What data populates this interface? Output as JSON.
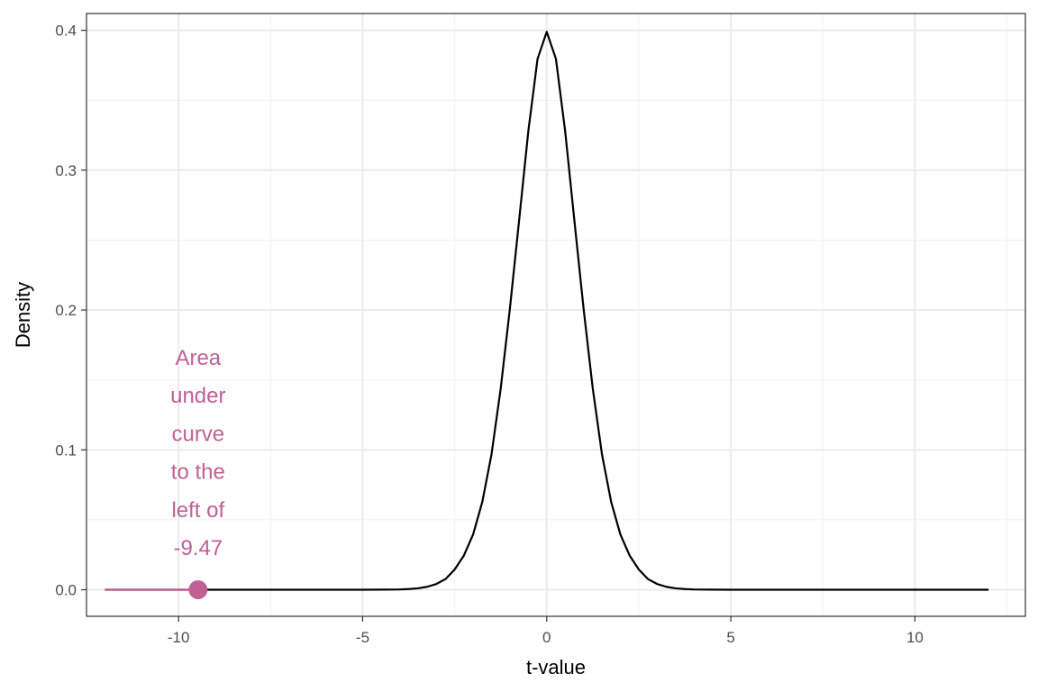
{
  "chart_data": {
    "type": "line",
    "title": "",
    "xlabel": "t-value",
    "ylabel": "Density",
    "xlim": [
      -12.5,
      13
    ],
    "ylim": [
      -0.019,
      0.412
    ],
    "x_ticks": [
      -10,
      -5,
      0,
      5,
      10
    ],
    "x_tick_labels": [
      "-10",
      "-5",
      "0",
      "5",
      "10"
    ],
    "y_ticks": [
      0.0,
      0.1,
      0.2,
      0.3,
      0.4
    ],
    "y_tick_labels": [
      "0.0",
      "0.1",
      "0.2",
      "0.3",
      "0.4"
    ],
    "grid": true,
    "legend": "none",
    "series": [
      {
        "distribution": "t-density",
        "x": [
          -12.0,
          -11.0,
          -10.0,
          -9.0,
          -8.0,
          -7.0,
          -6.0,
          -5.0,
          -4.5,
          -4.0,
          -3.75,
          -3.5,
          -3.25,
          -3.0,
          -2.75,
          -2.5,
          -2.25,
          -2.0,
          -1.75,
          -1.5,
          -1.25,
          -1.0,
          -0.75,
          -0.5,
          -0.25,
          0.0,
          0.25,
          0.5,
          0.75,
          1.0,
          1.25,
          1.5,
          1.75,
          2.0,
          2.25,
          2.5,
          2.75,
          3.0,
          3.25,
          3.5,
          3.75,
          4.0,
          4.5,
          5.0,
          6.0,
          7.0,
          8.0,
          9.0,
          10.0,
          11.0,
          12.0
        ],
        "y": [
          0.0,
          0.0,
          0.0,
          0.0,
          0.0,
          0.0,
          0.0,
          0.0,
          0.0001,
          0.0002,
          0.0005,
          0.001,
          0.0021,
          0.0041,
          0.0076,
          0.0145,
          0.0245,
          0.0395,
          0.0628,
          0.0968,
          0.1439,
          0.2012,
          0.2642,
          0.3279,
          0.3795,
          0.3989,
          0.3795,
          0.3279,
          0.2642,
          0.2012,
          0.1439,
          0.0968,
          0.0628,
          0.0395,
          0.0245,
          0.0145,
          0.0076,
          0.0041,
          0.0021,
          0.001,
          0.0005,
          0.0002,
          0.0001,
          0.0,
          0.0,
          0.0,
          0.0,
          0.0,
          0.0,
          0.0,
          0.0
        ],
        "color": "#000000"
      }
    ],
    "highlight": {
      "segment_x": [
        -12.0,
        -9.47
      ],
      "point": {
        "x": -9.47,
        "y": 0.0
      },
      "color": "#c06095"
    },
    "annotation": {
      "lines": [
        "Area",
        "under",
        "curve",
        "to the",
        "left of",
        "-9.47"
      ],
      "x": -9.47,
      "color": "#c06095"
    },
    "colors": {
      "panel_border": "#333333",
      "grid_major": "#ebebeb",
      "grid_minor": "#f2f2f2"
    }
  }
}
